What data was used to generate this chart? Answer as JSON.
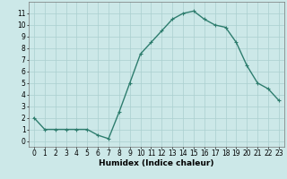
{
  "x": [
    0,
    1,
    2,
    3,
    4,
    5,
    6,
    7,
    8,
    9,
    10,
    11,
    12,
    13,
    14,
    15,
    16,
    17,
    18,
    19,
    20,
    21,
    22,
    23
  ],
  "y": [
    2,
    1,
    1,
    1,
    1,
    1,
    0.5,
    0.2,
    2.5,
    5,
    7.5,
    8.5,
    9.5,
    10.5,
    11,
    11.2,
    10.5,
    10,
    9.8,
    8.5,
    6.5,
    5,
    4.5,
    3.5
  ],
  "line_color": "#2e7d6e",
  "marker": "+",
  "markersize": 3,
  "linewidth": 1.0,
  "bg_color": "#cce8e8",
  "grid_color": "#aacfcf",
  "xlabel": "Humidex (Indice chaleur)",
  "xlabel_fontsize": 6.5,
  "tick_fontsize": 5.5,
  "xlim": [
    -0.5,
    23.5
  ],
  "ylim": [
    -0.5,
    12
  ],
  "yticks": [
    0,
    1,
    2,
    3,
    4,
    5,
    6,
    7,
    8,
    9,
    10,
    11
  ],
  "xticks": [
    0,
    1,
    2,
    3,
    4,
    5,
    6,
    7,
    8,
    9,
    10,
    11,
    12,
    13,
    14,
    15,
    16,
    17,
    18,
    19,
    20,
    21,
    22,
    23
  ]
}
